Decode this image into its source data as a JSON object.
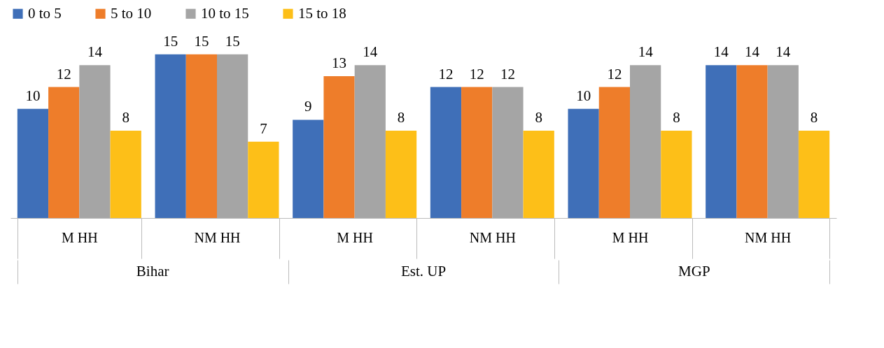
{
  "chart_data": {
    "type": "bar",
    "categories": [
      "M HH",
      "NM HH",
      "M HH",
      "NM HH",
      "M HH",
      "NM HH"
    ],
    "series": [
      {
        "name": "0 to 5",
        "color": "#3f6fb8",
        "values": [
          10,
          15,
          9,
          12,
          10,
          14
        ]
      },
      {
        "name": "5 to 10",
        "color": "#ee7d2a",
        "values": [
          12,
          15,
          13,
          12,
          12,
          14
        ]
      },
      {
        "name": "10 to 15",
        "color": "#a5a5a5",
        "values": [
          14,
          15,
          14,
          12,
          14,
          14
        ]
      },
      {
        "name": "15 to 18",
        "color": "#fdbf18",
        "values": [
          8,
          7,
          8,
          8,
          8,
          8
        ]
      }
    ],
    "annotations": [
      "Bihar",
      "Est. UP",
      "MGP"
    ],
    "data_labels": true,
    "legend": "top",
    "grid": false
  }
}
